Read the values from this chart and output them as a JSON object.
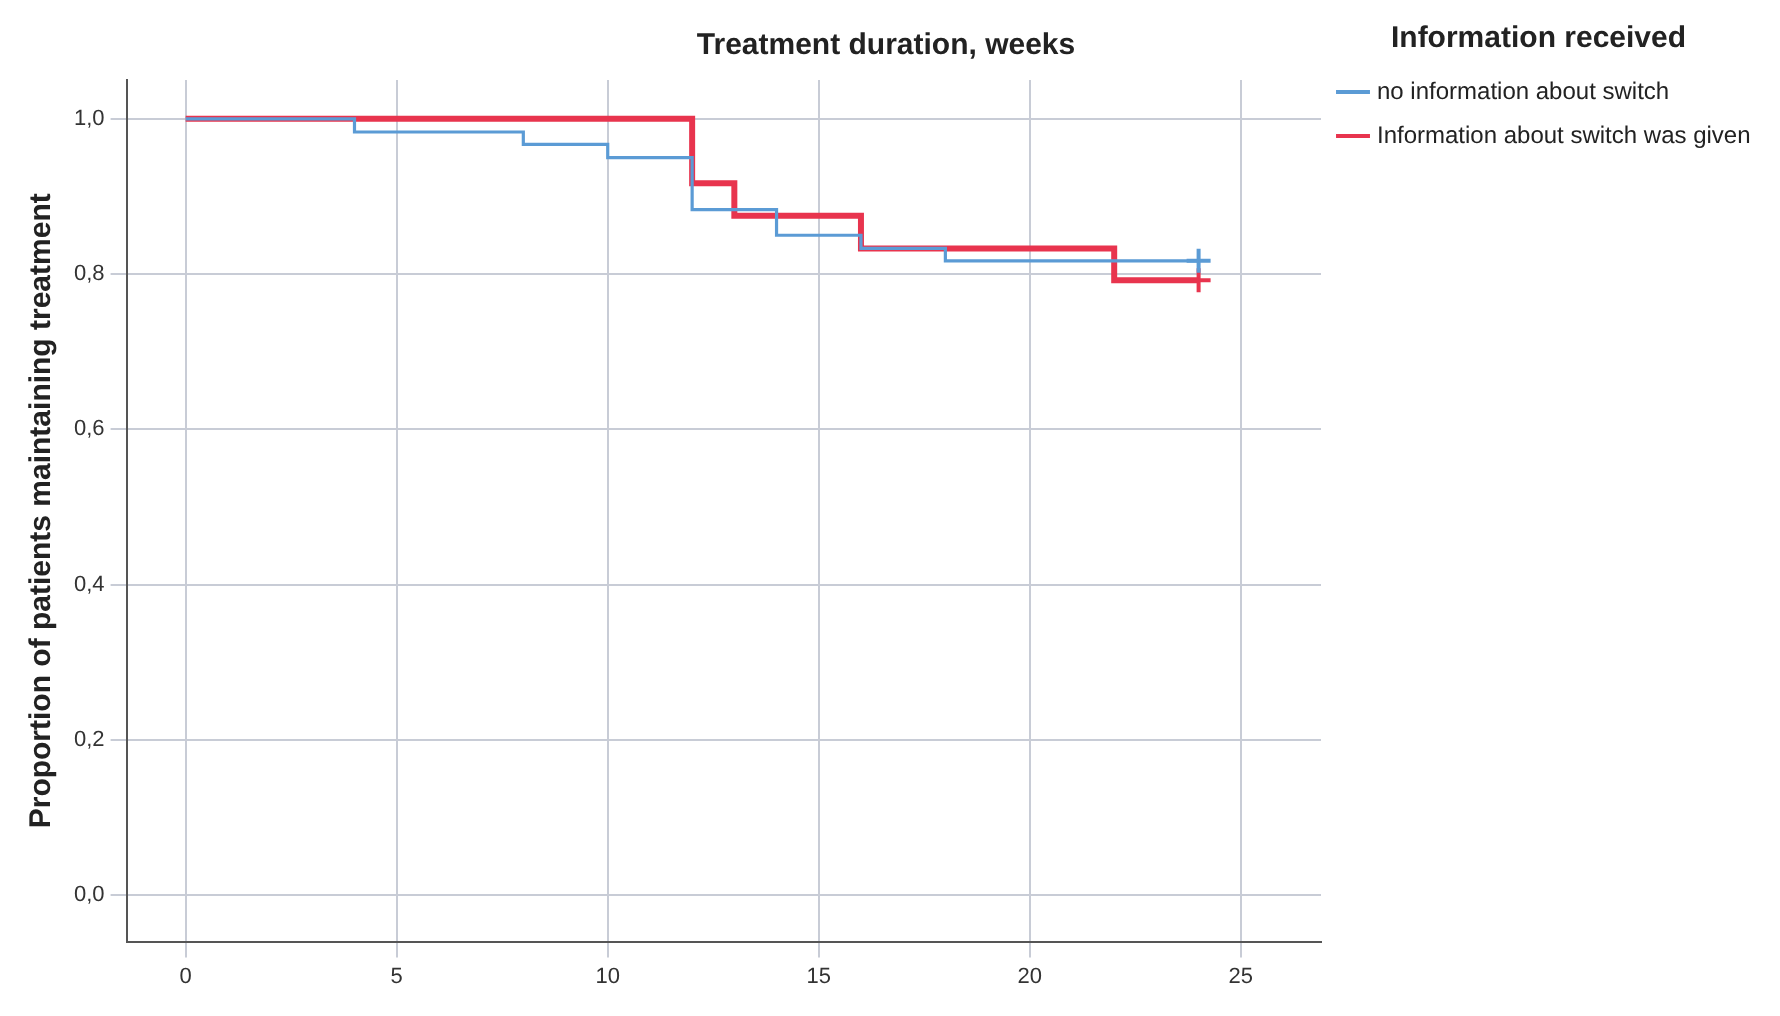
{
  "chart_data": {
    "type": "step",
    "title": "Treatment duration, weeks",
    "ylabel": "Proportion of patients maintaining treatment",
    "legend_title": "Information received",
    "legend": "top right",
    "grid": true,
    "marker": "none",
    "xlim": [
      -1.4,
      26.9
    ],
    "xticks": [
      0,
      5,
      10,
      15,
      20,
      25
    ],
    "ylim": [
      -0.06,
      1.05
    ],
    "yticks": [
      {
        "value": 0,
        "label": "0,0"
      },
      {
        "value": 0.2,
        "label": "0,2"
      },
      {
        "value": 0.4,
        "label": "0,4"
      },
      {
        "value": 0.6,
        "label": "0,6"
      },
      {
        "value": 0.8,
        "label": "0,8"
      },
      {
        "value": 1,
        "label": "1,0"
      }
    ],
    "series": [
      {
        "name": "no information about switch",
        "color": "#5b9bd5",
        "x": [
          0,
          4,
          8,
          10,
          12,
          14,
          16,
          18,
          24
        ],
        "values": [
          1,
          0.983,
          0.967,
          0.95,
          0.883,
          0.85,
          0.833,
          0.817,
          0.817
        ]
      },
      {
        "name": "Information about switch was given",
        "color": "#e8344e",
        "x": [
          0,
          12,
          13,
          16,
          22,
          24
        ],
        "values": [
          1,
          0.917,
          0.875,
          0.833,
          0.792,
          0.792
        ]
      },
      {
        "type": "scatter",
        "marker": "cross",
        "color": "#5b9bd5",
        "x": [
          24
        ],
        "values": [
          0.817
        ]
      },
      {
        "type": "scatter",
        "marker": "cross",
        "color": "#e8344e",
        "x": [
          24
        ],
        "values": [
          0.792
        ]
      }
    ]
  }
}
